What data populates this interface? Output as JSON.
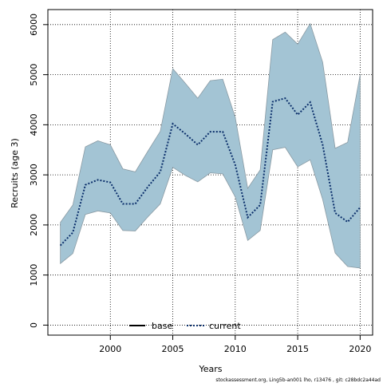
{
  "chart_data": {
    "type": "area",
    "xlabel": "Years",
    "ylabel": "Recruits (age 3)",
    "xlim": [
      1995,
      2021
    ],
    "ylim": [
      -200,
      6300
    ],
    "x_ticks": [
      2000,
      2005,
      2010,
      2015,
      2020
    ],
    "y_ticks": [
      0,
      1000,
      2000,
      3000,
      4000,
      5000,
      6000
    ],
    "grid": true,
    "legend_placement": "bottom-center",
    "legend": [
      {
        "name": "base",
        "color": "#000000",
        "style": "solid"
      },
      {
        "name": "current",
        "color": "#0b2f6b",
        "style": "dotted"
      }
    ],
    "colors": {
      "band_fill": "#a3c4d4",
      "band_edge": "#8a9aa3",
      "current_line": "#0b2f6b",
      "base_line": "#000000"
    },
    "x": [
      1996,
      1997,
      1998,
      1999,
      2000,
      2001,
      2002,
      2003,
      2004,
      2005,
      2006,
      2007,
      2008,
      2009,
      2010,
      2011,
      2012,
      2013,
      2014,
      2015,
      2016,
      2017,
      2018,
      2019,
      2020
    ],
    "series": [
      {
        "name": "current",
        "values": [
          1590,
          1850,
          2800,
          2900,
          2850,
          2420,
          2420,
          2760,
          3060,
          4020,
          3820,
          3600,
          3860,
          3860,
          3200,
          2150,
          2400,
          4460,
          4530,
          4200,
          4450,
          3600,
          2240,
          2060,
          2350
        ]
      },
      {
        "name": "upper",
        "values": [
          2050,
          2400,
          3560,
          3680,
          3600,
          3120,
          3060,
          3470,
          3870,
          5120,
          4830,
          4530,
          4880,
          4910,
          4150,
          2730,
          3100,
          5700,
          5850,
          5610,
          6020,
          5250,
          3530,
          3650,
          5000
        ]
      },
      {
        "name": "lower",
        "values": [
          1230,
          1430,
          2210,
          2280,
          2240,
          1890,
          1880,
          2160,
          2420,
          3150,
          2990,
          2860,
          3040,
          3020,
          2560,
          1690,
          1890,
          3500,
          3550,
          3160,
          3300,
          2510,
          1440,
          1170,
          1140
        ]
      }
    ]
  },
  "footnote": "stockassessment.org, Ling5b-an001 lho, r13476 , git: c28bdc2a44ad"
}
